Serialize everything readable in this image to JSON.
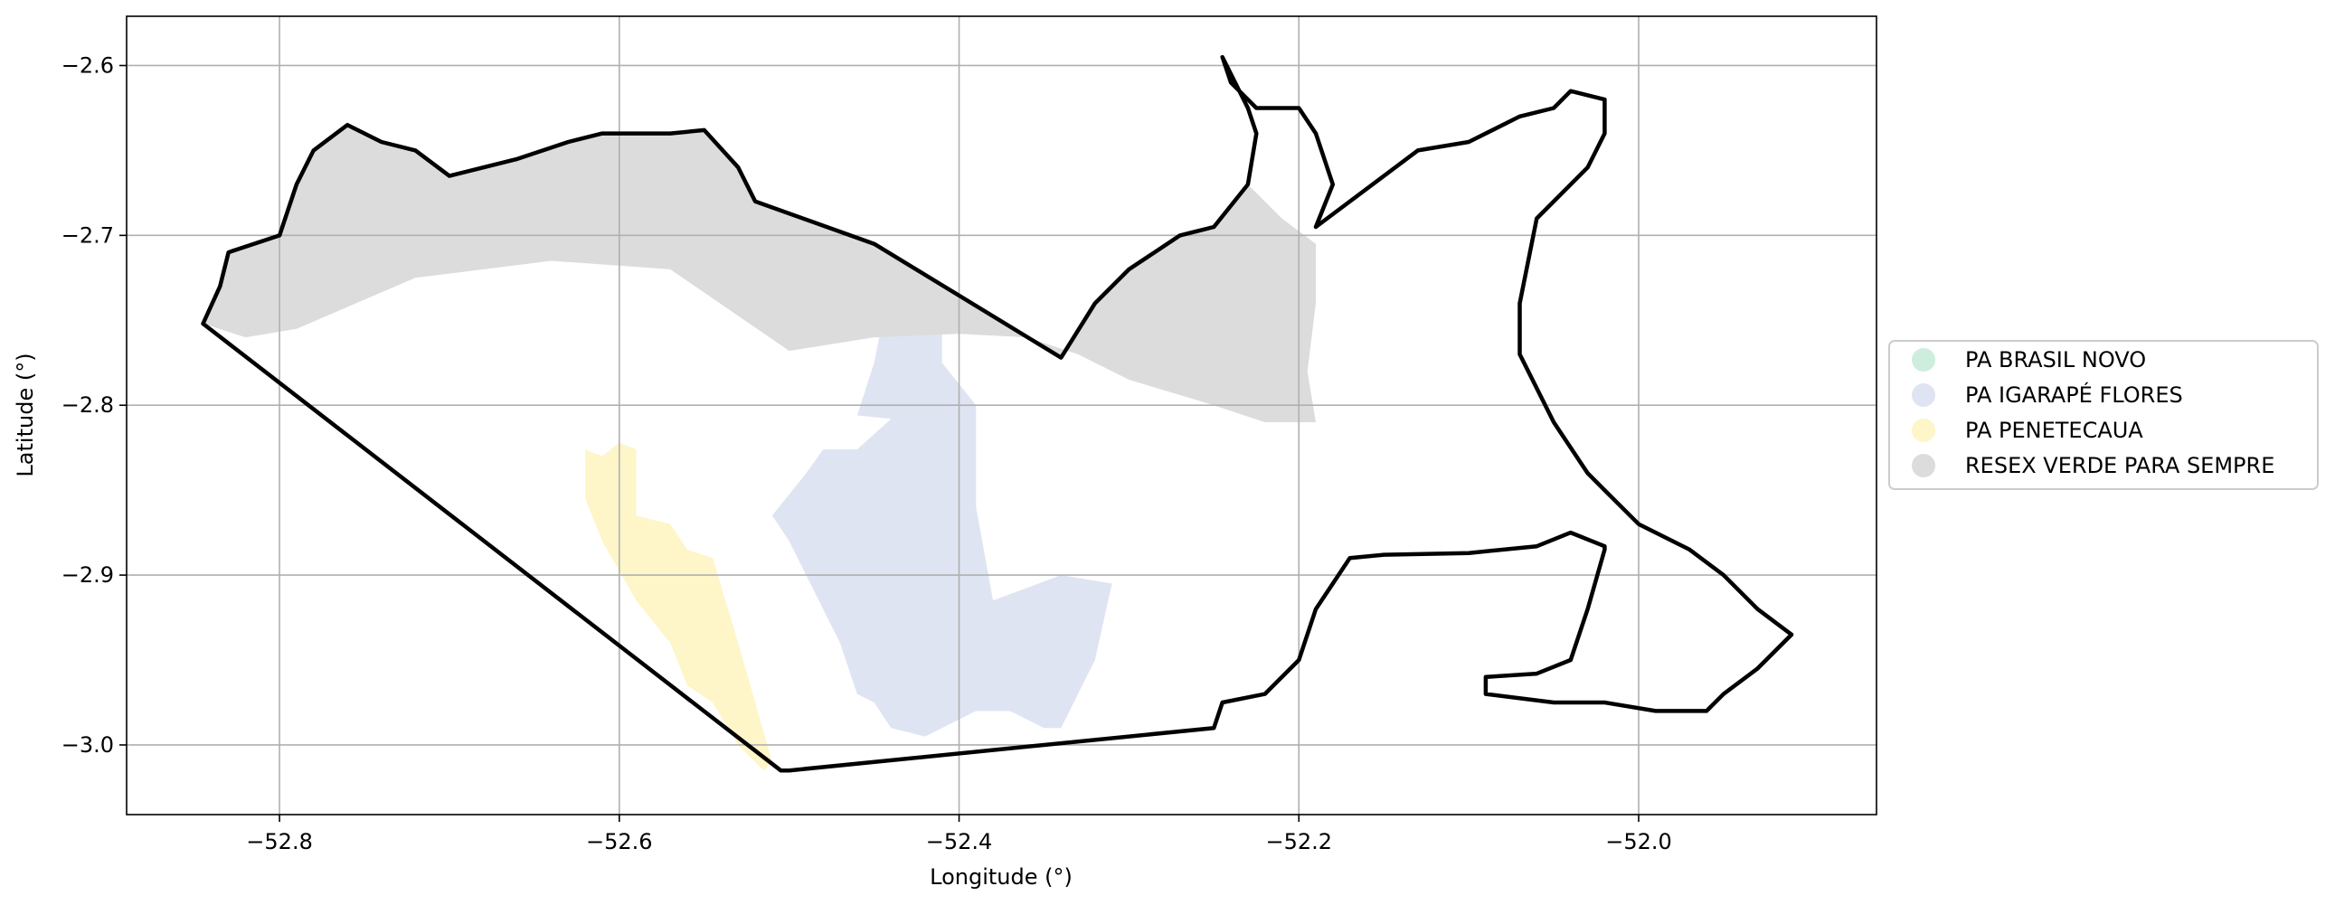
{
  "chart_data": {
    "type": "map",
    "xlabel": "Longitude (°)",
    "ylabel": "Latitude (°)",
    "xlim": [
      -52.89,
      -51.86
    ],
    "ylim": [
      -3.041,
      -2.571
    ],
    "xticks": [
      -52.8,
      -52.6,
      -52.4,
      -52.2,
      -52.0
    ],
    "xtick_labels": [
      "−52.8",
      "−52.6",
      "−52.4",
      "−52.2",
      "−52.0"
    ],
    "yticks": [
      -2.6,
      -2.7,
      -2.8,
      -2.9,
      -3.0
    ],
    "ytick_labels": [
      "−2.6",
      "−2.7",
      "−2.8",
      "−2.9",
      "−3.0"
    ],
    "grid": true,
    "legend_position": "right",
    "boundary_color": "#000000",
    "areas": [
      {
        "name": "PA BRASIL NOVO",
        "color": "#cdeedd",
        "polygon": []
      },
      {
        "name": "PA IGARAPÉ FLORES",
        "color": "#dfe4f2",
        "polygon": [
          [
            -52.44,
            -2.748
          ],
          [
            -52.41,
            -2.748
          ],
          [
            -52.41,
            -2.775
          ],
          [
            -52.39,
            -2.8
          ],
          [
            -52.39,
            -2.82
          ],
          [
            -52.39,
            -2.86
          ],
          [
            -52.38,
            -2.915
          ],
          [
            -52.34,
            -2.9
          ],
          [
            -52.31,
            -2.905
          ],
          [
            -52.32,
            -2.95
          ],
          [
            -52.34,
            -2.99
          ],
          [
            -52.35,
            -2.99
          ],
          [
            -52.37,
            -2.98
          ],
          [
            -52.39,
            -2.98
          ],
          [
            -52.4,
            -2.985
          ],
          [
            -52.42,
            -2.995
          ],
          [
            -52.44,
            -2.99
          ],
          [
            -52.45,
            -2.975
          ],
          [
            -52.46,
            -2.97
          ],
          [
            -52.47,
            -2.94
          ],
          [
            -52.48,
            -2.92
          ],
          [
            -52.5,
            -2.88
          ],
          [
            -52.51,
            -2.865
          ],
          [
            -52.49,
            -2.84
          ],
          [
            -52.48,
            -2.826
          ],
          [
            -52.46,
            -2.826
          ],
          [
            -52.44,
            -2.808
          ],
          [
            -52.46,
            -2.806
          ],
          [
            -52.45,
            -2.775
          ],
          [
            -52.445,
            -2.75
          ]
        ]
      },
      {
        "name": "PA PENETECAUA",
        "color": "#fef5c9",
        "polygon": [
          [
            -52.62,
            -2.826
          ],
          [
            -52.61,
            -2.83
          ],
          [
            -52.6,
            -2.822
          ],
          [
            -52.59,
            -2.826
          ],
          [
            -52.59,
            -2.865
          ],
          [
            -52.57,
            -2.87
          ],
          [
            -52.56,
            -2.885
          ],
          [
            -52.545,
            -2.89
          ],
          [
            -52.53,
            -2.94
          ],
          [
            -52.52,
            -2.975
          ],
          [
            -52.51,
            -3.01
          ],
          [
            -52.515,
            -3.015
          ],
          [
            -52.53,
            -3.0
          ],
          [
            -52.545,
            -2.975
          ],
          [
            -52.56,
            -2.965
          ],
          [
            -52.57,
            -2.94
          ],
          [
            -52.59,
            -2.915
          ],
          [
            -52.61,
            -2.88
          ],
          [
            -52.62,
            -2.855
          ]
        ]
      },
      {
        "name": "RESEX VERDE PARA SEMPRE",
        "color": "#dcdcdc",
        "polygon": [
          [
            -52.845,
            -2.752
          ],
          [
            -52.835,
            -2.73
          ],
          [
            -52.83,
            -2.71
          ],
          [
            -52.8,
            -2.7
          ],
          [
            -52.79,
            -2.67
          ],
          [
            -52.78,
            -2.65
          ],
          [
            -52.76,
            -2.635
          ],
          [
            -52.74,
            -2.645
          ],
          [
            -52.72,
            -2.65
          ],
          [
            -52.7,
            -2.665
          ],
          [
            -52.68,
            -2.66
          ],
          [
            -52.66,
            -2.655
          ],
          [
            -52.63,
            -2.645
          ],
          [
            -52.61,
            -2.64
          ],
          [
            -52.57,
            -2.64
          ],
          [
            -52.55,
            -2.638
          ],
          [
            -52.53,
            -2.66
          ],
          [
            -52.52,
            -2.68
          ],
          [
            -52.45,
            -2.705
          ],
          [
            -52.34,
            -2.772
          ],
          [
            -52.32,
            -2.74
          ],
          [
            -52.3,
            -2.72
          ],
          [
            -52.27,
            -2.7
          ],
          [
            -52.25,
            -2.695
          ],
          [
            -52.23,
            -2.67
          ],
          [
            -52.21,
            -2.69
          ],
          [
            -52.19,
            -2.705
          ],
          [
            -52.19,
            -2.74
          ],
          [
            -52.195,
            -2.78
          ],
          [
            -52.19,
            -2.81
          ],
          [
            -52.22,
            -2.81
          ],
          [
            -52.25,
            -2.8
          ],
          [
            -52.3,
            -2.785
          ],
          [
            -52.33,
            -2.77
          ],
          [
            -52.36,
            -2.76
          ],
          [
            -52.4,
            -2.758
          ],
          [
            -52.45,
            -2.76
          ],
          [
            -52.5,
            -2.768
          ],
          [
            -52.57,
            -2.72
          ],
          [
            -52.64,
            -2.715
          ],
          [
            -52.72,
            -2.725
          ],
          [
            -52.79,
            -2.755
          ],
          [
            -52.82,
            -2.76
          ]
        ]
      }
    ],
    "outline": [
      [
        -52.845,
        -2.752
      ],
      [
        -52.835,
        -2.73
      ],
      [
        -52.83,
        -2.71
      ],
      [
        -52.8,
        -2.7
      ],
      [
        -52.79,
        -2.67
      ],
      [
        -52.78,
        -2.65
      ],
      [
        -52.76,
        -2.635
      ],
      [
        -52.74,
        -2.645
      ],
      [
        -52.72,
        -2.65
      ],
      [
        -52.7,
        -2.665
      ],
      [
        -52.68,
        -2.66
      ],
      [
        -52.66,
        -2.655
      ],
      [
        -52.63,
        -2.645
      ],
      [
        -52.61,
        -2.64
      ],
      [
        -52.57,
        -2.64
      ],
      [
        -52.55,
        -2.638
      ],
      [
        -52.53,
        -2.66
      ],
      [
        -52.52,
        -2.68
      ],
      [
        -52.45,
        -2.705
      ],
      [
        -52.34,
        -2.772
      ],
      [
        -52.32,
        -2.74
      ],
      [
        -52.3,
        -2.72
      ],
      [
        -52.27,
        -2.7
      ],
      [
        -52.25,
        -2.695
      ],
      [
        -52.23,
        -2.67
      ],
      [
        -52.225,
        -2.64
      ],
      [
        -52.23,
        -2.625
      ],
      [
        -52.245,
        -2.595
      ],
      [
        -52.24,
        -2.61
      ],
      [
        -52.225,
        -2.625
      ],
      [
        -52.2,
        -2.625
      ],
      [
        -52.19,
        -2.64
      ],
      [
        -52.18,
        -2.67
      ],
      [
        -52.19,
        -2.695
      ],
      [
        -52.13,
        -2.65
      ],
      [
        -52.1,
        -2.645
      ],
      [
        -52.07,
        -2.63
      ],
      [
        -52.05,
        -2.625
      ],
      [
        -52.04,
        -2.615
      ],
      [
        -52.02,
        -2.62
      ],
      [
        -52.02,
        -2.64
      ],
      [
        -52.03,
        -2.66
      ],
      [
        -52.06,
        -2.69
      ],
      [
        -52.07,
        -2.74
      ],
      [
        -52.07,
        -2.77
      ],
      [
        -52.05,
        -2.81
      ],
      [
        -52.03,
        -2.84
      ],
      [
        -52.0,
        -2.87
      ],
      [
        -51.97,
        -2.885
      ],
      [
        -51.95,
        -2.9
      ],
      [
        -51.93,
        -2.92
      ],
      [
        -51.91,
        -2.935
      ],
      [
        -51.93,
        -2.955
      ],
      [
        -51.95,
        -2.97
      ],
      [
        -51.96,
        -2.98
      ],
      [
        -51.99,
        -2.98
      ],
      [
        -52.02,
        -2.975
      ],
      [
        -52.05,
        -2.975
      ],
      [
        -52.09,
        -2.97
      ],
      [
        -52.09,
        -2.96
      ],
      [
        -52.06,
        -2.958
      ],
      [
        -52.04,
        -2.95
      ],
      [
        -52.03,
        -2.92
      ],
      [
        -52.02,
        -2.885
      ],
      [
        -52.02,
        -2.883
      ],
      [
        -52.04,
        -2.875
      ],
      [
        -52.06,
        -2.883
      ],
      [
        -52.1,
        -2.887
      ],
      [
        -52.15,
        -2.888
      ],
      [
        -52.17,
        -2.89
      ],
      [
        -52.19,
        -2.92
      ],
      [
        -52.2,
        -2.95
      ],
      [
        -52.22,
        -2.97
      ],
      [
        -52.245,
        -2.975
      ],
      [
        -52.25,
        -2.99
      ],
      [
        -52.5,
        -3.015
      ],
      [
        -52.505,
        -3.015
      ],
      [
        -52.845,
        -2.752
      ]
    ]
  }
}
